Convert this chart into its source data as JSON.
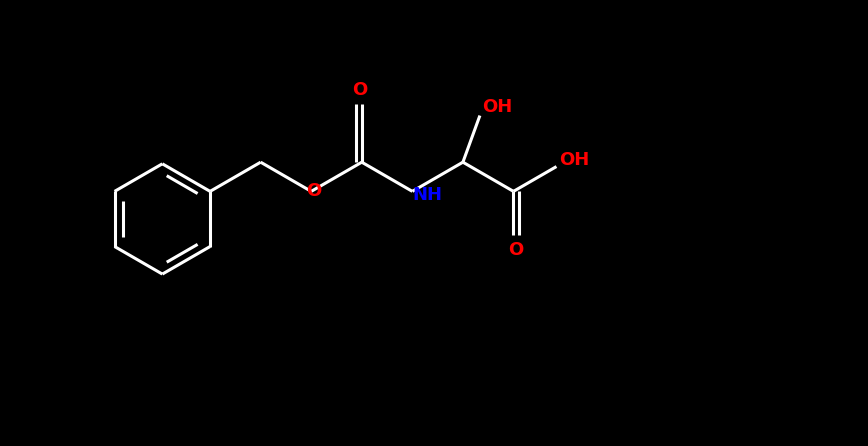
{
  "background_color": "#000000",
  "bond_color": "#ffffff",
  "oxygen_color": "#ff0000",
  "nitrogen_color": "#0000ff",
  "font_size_labels": 13,
  "bond_width": 2.2,
  "fig_width": 8.68,
  "fig_height": 4.46,
  "dpi": 100,
  "xlim": [
    0,
    10
  ],
  "ylim": [
    0,
    5.5
  ]
}
